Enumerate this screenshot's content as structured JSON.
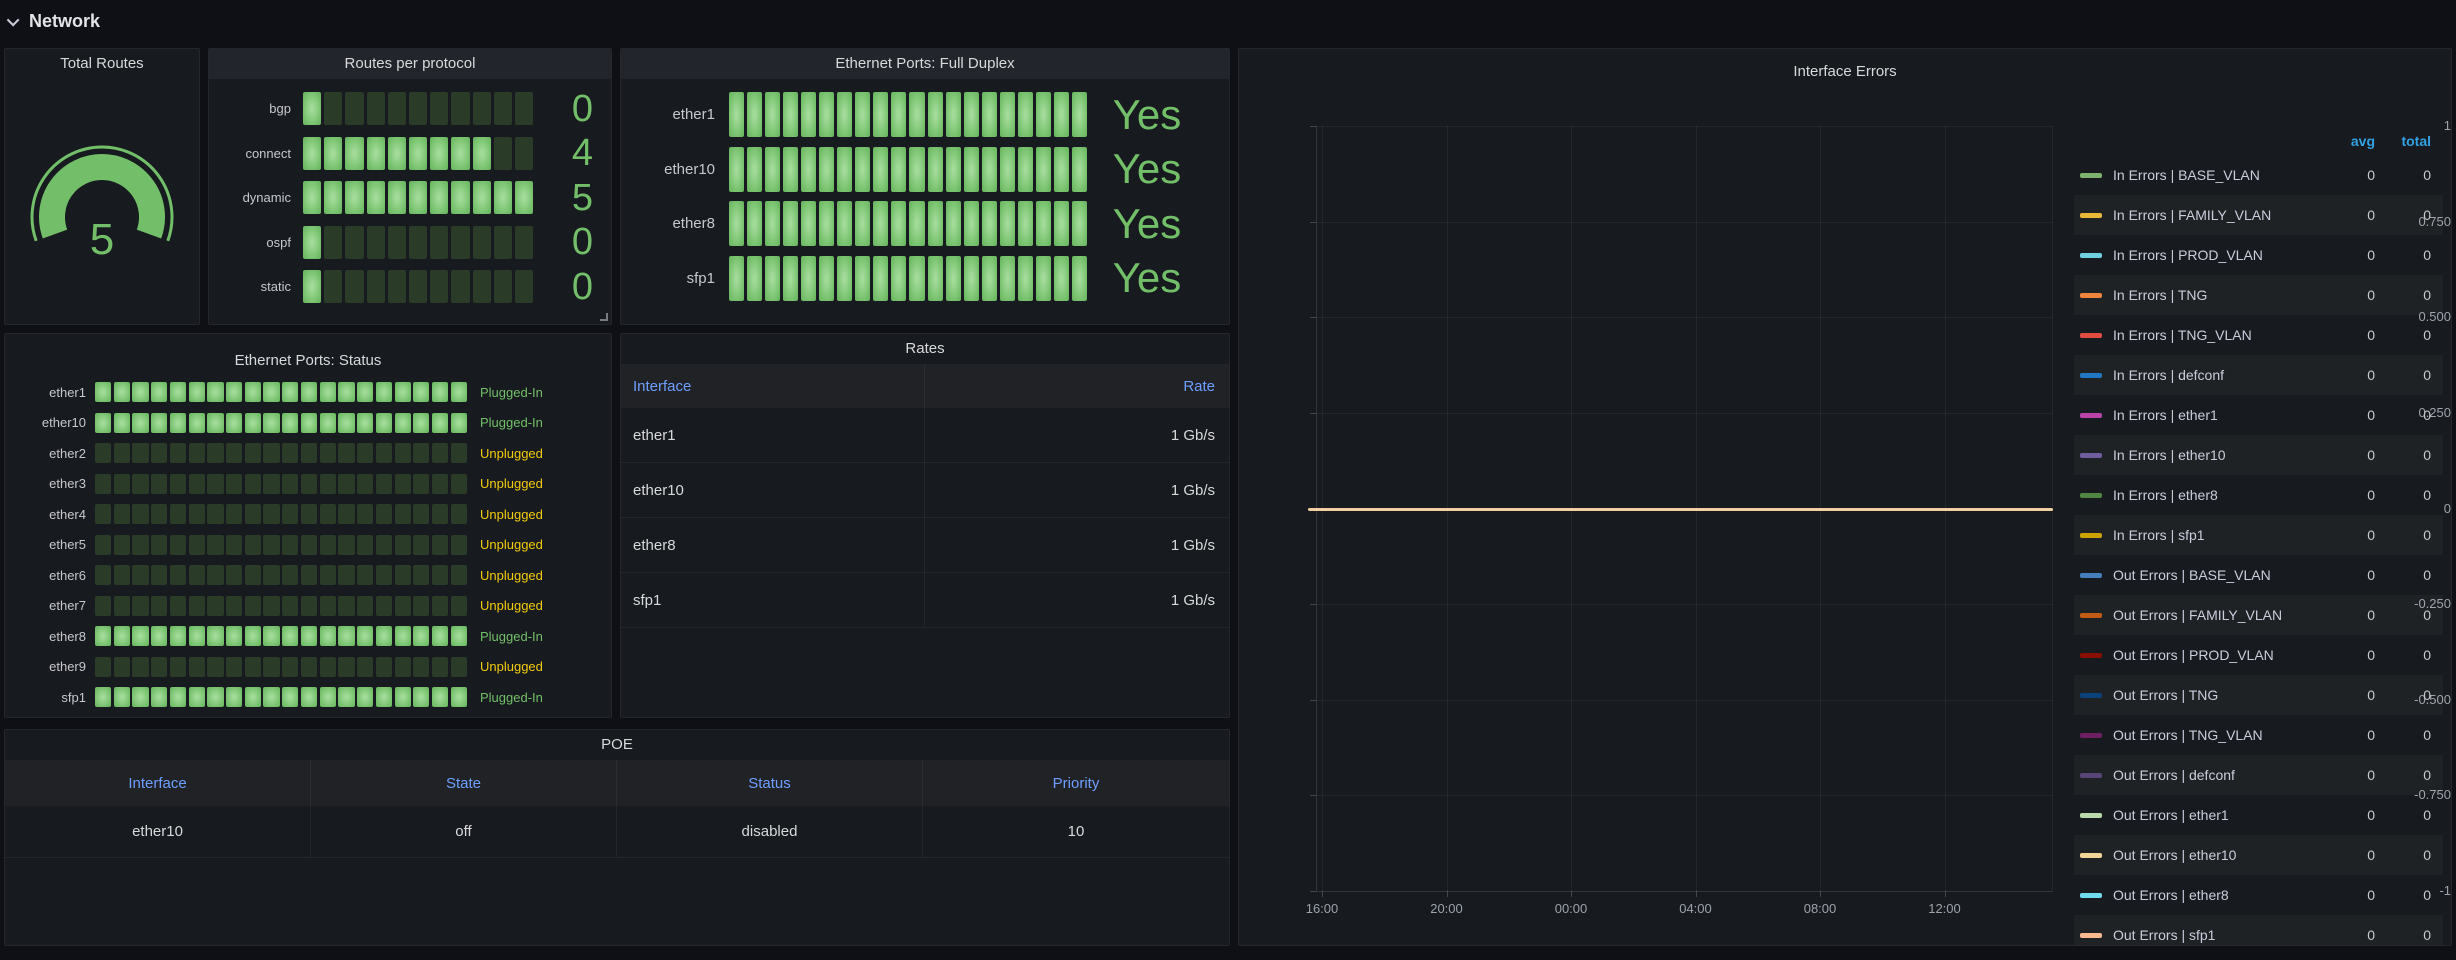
{
  "page": {
    "section_title": "Network"
  },
  "colors": {
    "green": "#73BF69",
    "yellow": "#F2CC0C",
    "link_blue": "#6E9FFF",
    "legend_header_blue": "#33A2E5",
    "unlit_cell": "#2A3B28"
  },
  "panels": {
    "total_routes": {
      "title": "Total Routes",
      "value": "5",
      "gauge_color": "#73BF69"
    },
    "routes_per_protocol": {
      "title": "Routes per protocol",
      "cell_count": 11,
      "rows": [
        {
          "label": "bgp",
          "value": "0",
          "lit": 1
        },
        {
          "label": "connect",
          "value": "4",
          "lit": 9
        },
        {
          "label": "dynamic",
          "value": "5",
          "lit": 11
        },
        {
          "label": "ospf",
          "value": "0",
          "lit": 1
        },
        {
          "label": "static",
          "value": "0",
          "lit": 1
        }
      ]
    },
    "full_duplex": {
      "title": "Ethernet Ports: Full Duplex",
      "cell_count": 20,
      "rows": [
        {
          "label": "ether1",
          "value": "Yes",
          "lit": 20
        },
        {
          "label": "ether10",
          "value": "Yes",
          "lit": 20
        },
        {
          "label": "ether8",
          "value": "Yes",
          "lit": 20
        },
        {
          "label": "sfp1",
          "value": "Yes",
          "lit": 20
        }
      ]
    },
    "port_status": {
      "title": "Ethernet Ports: Status",
      "cell_count": 20,
      "status_colors": {
        "Plugged-In": "#73BF69",
        "Unplugged": "#F2CC0C"
      },
      "rows": [
        {
          "label": "ether1",
          "status": "Plugged-In",
          "lit": 20
        },
        {
          "label": "ether10",
          "status": "Plugged-In",
          "lit": 20
        },
        {
          "label": "ether2",
          "status": "Unplugged",
          "lit": 0
        },
        {
          "label": "ether3",
          "status": "Unplugged",
          "lit": 0
        },
        {
          "label": "ether4",
          "status": "Unplugged",
          "lit": 0
        },
        {
          "label": "ether5",
          "status": "Unplugged",
          "lit": 0
        },
        {
          "label": "ether6",
          "status": "Unplugged",
          "lit": 0
        },
        {
          "label": "ether7",
          "status": "Unplugged",
          "lit": 0
        },
        {
          "label": "ether8",
          "status": "Plugged-In",
          "lit": 20
        },
        {
          "label": "ether9",
          "status": "Unplugged",
          "lit": 0
        },
        {
          "label": "sfp1",
          "status": "Plugged-In",
          "lit": 20
        }
      ]
    },
    "rates": {
      "title": "Rates",
      "columns": [
        "Interface",
        "Rate"
      ],
      "rows": [
        [
          "ether1",
          "1 Gb/s"
        ],
        [
          "ether10",
          "1 Gb/s"
        ],
        [
          "ether8",
          "1 Gb/s"
        ],
        [
          "sfp1",
          "1 Gb/s"
        ]
      ]
    },
    "poe": {
      "title": "POE",
      "columns": [
        "Interface",
        "State",
        "Status",
        "Priority"
      ],
      "rows": [
        [
          "ether10",
          "off",
          "disabled",
          "10"
        ]
      ]
    },
    "interface_errors": {
      "title": "Interface Errors",
      "legend_headers": [
        "avg",
        "total"
      ],
      "y_tick_labels": [
        "1",
        "0.750",
        "0.500",
        "0.250",
        "0",
        "-0.250",
        "-0.500",
        "-0.750",
        "-1"
      ],
      "x_tick_labels": [
        "16:00",
        "20:00",
        "00:00",
        "04:00",
        "08:00",
        "12:00"
      ],
      "zero_line_color": "#F2CFA2"
    }
  },
  "chart_data": {
    "type": "line",
    "title": "Interface Errors",
    "x": [
      "16:00",
      "20:00",
      "00:00",
      "04:00",
      "08:00",
      "12:00"
    ],
    "xlabel": "",
    "ylabel": "",
    "ylim": [
      -1,
      1
    ],
    "y_ticks": [
      1,
      0.75,
      0.5,
      0.25,
      0,
      -0.25,
      -0.5,
      -0.75,
      -1
    ],
    "grid": true,
    "legend_position": "right",
    "legend_columns": [
      "avg",
      "total"
    ],
    "series": [
      {
        "name": "In Errors | BASE_VLAN",
        "color": "#7EB26D",
        "avg": 0,
        "total": 0,
        "values": [
          0,
          0,
          0,
          0,
          0,
          0
        ]
      },
      {
        "name": "In Errors | FAMILY_VLAN",
        "color": "#EAB839",
        "avg": 0,
        "total": 0,
        "values": [
          0,
          0,
          0,
          0,
          0,
          0
        ]
      },
      {
        "name": "In Errors | PROD_VLAN",
        "color": "#6ED0E0",
        "avg": 0,
        "total": 0,
        "values": [
          0,
          0,
          0,
          0,
          0,
          0
        ]
      },
      {
        "name": "In Errors | TNG",
        "color": "#EF843C",
        "avg": 0,
        "total": 0,
        "values": [
          0,
          0,
          0,
          0,
          0,
          0
        ]
      },
      {
        "name": "In Errors | TNG_VLAN",
        "color": "#E24D42",
        "avg": 0,
        "total": 0,
        "values": [
          0,
          0,
          0,
          0,
          0,
          0
        ]
      },
      {
        "name": "In Errors | defconf",
        "color": "#1F78C1",
        "avg": 0,
        "total": 0,
        "values": [
          0,
          0,
          0,
          0,
          0,
          0
        ]
      },
      {
        "name": "In Errors | ether1",
        "color": "#BA43A9",
        "avg": 0,
        "total": 0,
        "values": [
          0,
          0,
          0,
          0,
          0,
          0
        ]
      },
      {
        "name": "In Errors | ether10",
        "color": "#705DA0",
        "avg": 0,
        "total": 0,
        "values": [
          0,
          0,
          0,
          0,
          0,
          0
        ]
      },
      {
        "name": "In Errors | ether8",
        "color": "#508642",
        "avg": 0,
        "total": 0,
        "values": [
          0,
          0,
          0,
          0,
          0,
          0
        ]
      },
      {
        "name": "In Errors | sfp1",
        "color": "#CCA300",
        "avg": 0,
        "total": 0,
        "values": [
          0,
          0,
          0,
          0,
          0,
          0
        ]
      },
      {
        "name": "Out Errors | BASE_VLAN",
        "color": "#447EBC",
        "avg": 0,
        "total": 0,
        "values": [
          0,
          0,
          0,
          0,
          0,
          0
        ]
      },
      {
        "name": "Out Errors | FAMILY_VLAN",
        "color": "#C15C17",
        "avg": 0,
        "total": 0,
        "values": [
          0,
          0,
          0,
          0,
          0,
          0
        ]
      },
      {
        "name": "Out Errors | PROD_VLAN",
        "color": "#890F02",
        "avg": 0,
        "total": 0,
        "values": [
          0,
          0,
          0,
          0,
          0,
          0
        ]
      },
      {
        "name": "Out Errors | TNG",
        "color": "#0A437C",
        "avg": 0,
        "total": 0,
        "values": [
          0,
          0,
          0,
          0,
          0,
          0
        ]
      },
      {
        "name": "Out Errors | TNG_VLAN",
        "color": "#6D1F62",
        "avg": 0,
        "total": 0,
        "values": [
          0,
          0,
          0,
          0,
          0,
          0
        ]
      },
      {
        "name": "Out Errors | defconf",
        "color": "#584477",
        "avg": 0,
        "total": 0,
        "values": [
          0,
          0,
          0,
          0,
          0,
          0
        ]
      },
      {
        "name": "Out Errors | ether1",
        "color": "#B7DBAB",
        "avg": 0,
        "total": 0,
        "values": [
          0,
          0,
          0,
          0,
          0,
          0
        ]
      },
      {
        "name": "Out Errors | ether10",
        "color": "#F4D598",
        "avg": 0,
        "total": 0,
        "values": [
          0,
          0,
          0,
          0,
          0,
          0
        ]
      },
      {
        "name": "Out Errors | ether8",
        "color": "#70DBED",
        "avg": 0,
        "total": 0,
        "values": [
          0,
          0,
          0,
          0,
          0,
          0
        ]
      },
      {
        "name": "Out Errors | sfp1",
        "color": "#F9BA8F",
        "avg": 0,
        "total": 0,
        "values": [
          0,
          0,
          0,
          0,
          0,
          0
        ]
      }
    ]
  }
}
